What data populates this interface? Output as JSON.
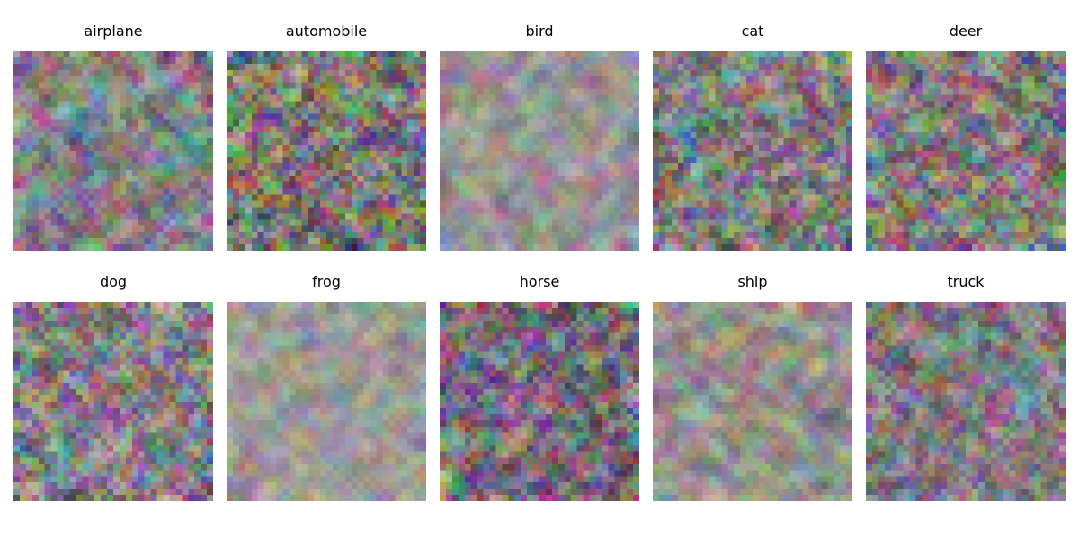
{
  "figure": {
    "rows": 2,
    "columns": 5,
    "image_resolution": [
      32,
      32
    ]
  },
  "panels": [
    {
      "label": "airplane"
    },
    {
      "label": "automobile"
    },
    {
      "label": "bird"
    },
    {
      "label": "cat"
    },
    {
      "label": "deer"
    },
    {
      "label": "dog"
    },
    {
      "label": "frog"
    },
    {
      "label": "horse"
    },
    {
      "label": "ship"
    },
    {
      "label": "truck"
    }
  ]
}
